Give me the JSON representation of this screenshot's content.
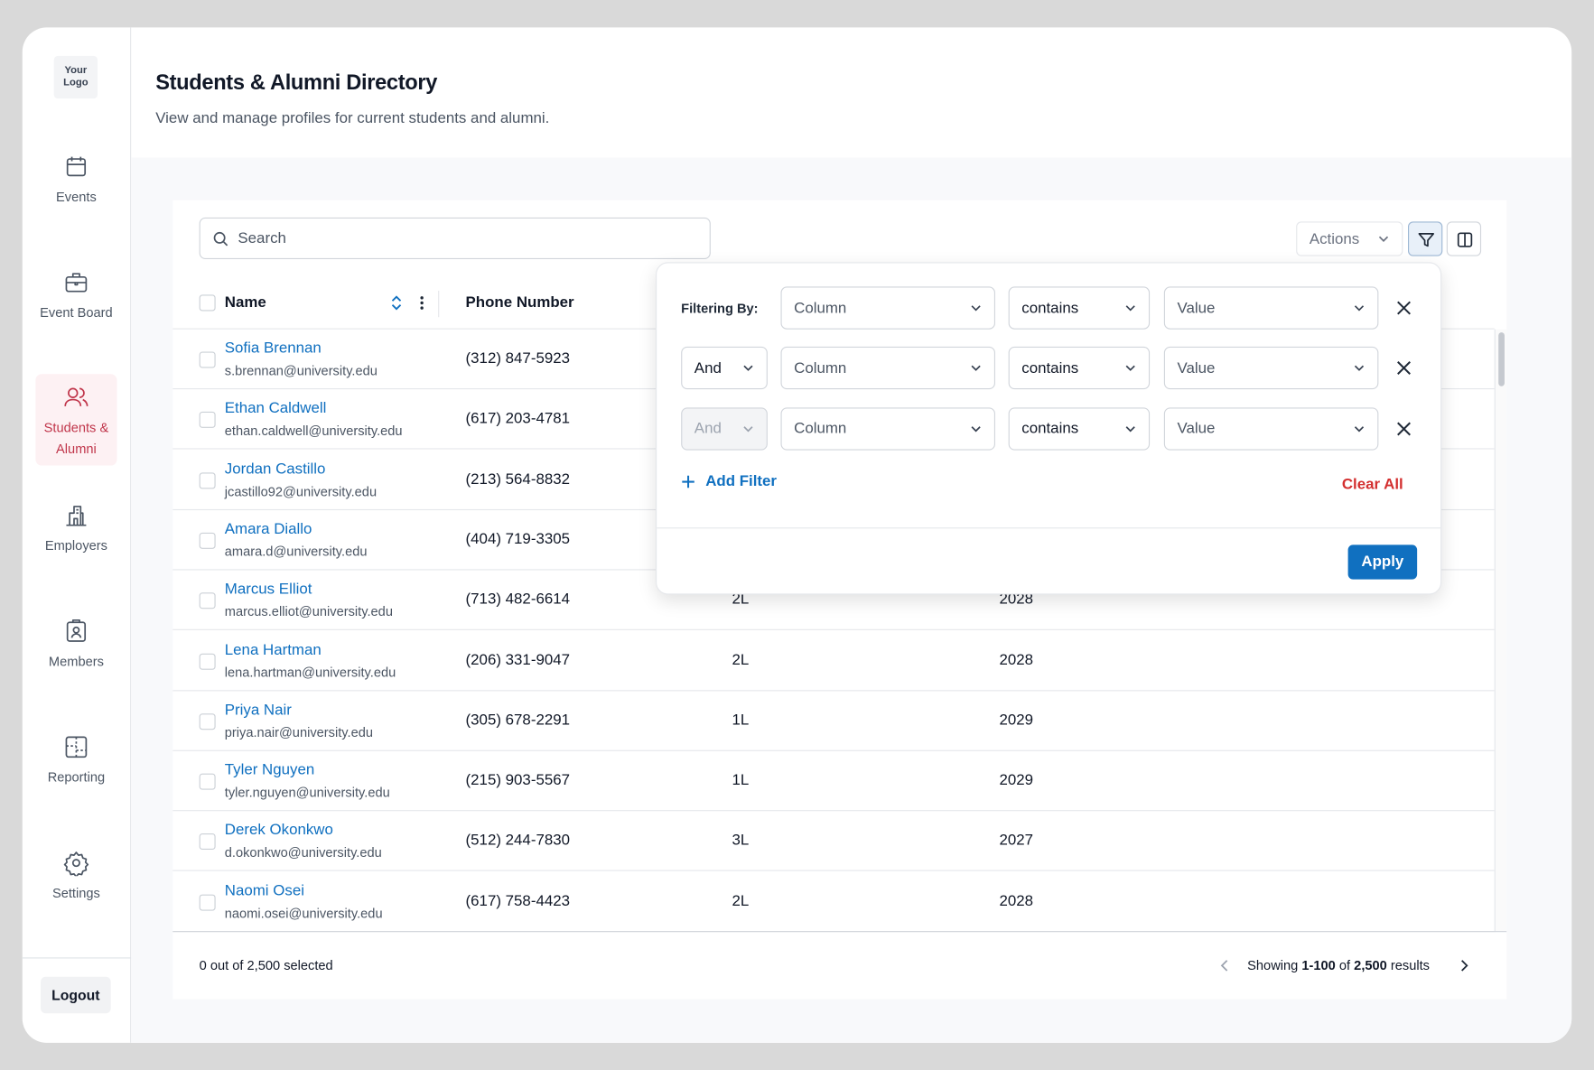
{
  "sidebar": {
    "logo": "Your Logo",
    "nav": [
      {
        "label": "Events",
        "icon": "calendar"
      },
      {
        "label": "Event Board",
        "icon": "briefcase"
      },
      {
        "label": "Students & Alumni",
        "icon": "users",
        "active": true
      },
      {
        "label": "Employers",
        "icon": "building"
      },
      {
        "label": "Members",
        "icon": "badge"
      },
      {
        "label": "Reporting",
        "icon": "layout"
      },
      {
        "label": "Settings",
        "icon": "gear"
      }
    ],
    "logout": "Logout"
  },
  "header": {
    "title": "Students & Alumni Directory",
    "subtitle": "View and manage profiles for current students and alumni."
  },
  "toolbar": {
    "search": "Search",
    "actions": "Actions"
  },
  "table": {
    "columns": [
      "Name",
      "Phone Number"
    ],
    "rows": [
      {
        "name": "Sofia Brennan",
        "email": "s.brennan@university.edu",
        "phone": "(312) 847-5923"
      },
      {
        "name": "Ethan Caldwell",
        "email": "ethan.caldwell@university.edu",
        "phone": "(617) 203-4781"
      },
      {
        "name": "Jordan Castillo",
        "email": "jcastillo92@university.edu",
        "phone": "(213) 564-8832"
      },
      {
        "name": "Amara Diallo",
        "email": "amara.d@university.edu",
        "phone": "(404) 719-3305"
      },
      {
        "name": "Marcus Elliot",
        "email": "marcus.elliot@university.edu",
        "phone": "(713) 482-6614",
        "level": "2L",
        "year": "2028"
      },
      {
        "name": "Lena Hartman",
        "email": "lena.hartman@university.edu",
        "phone": "(206) 331-9047",
        "level": "2L",
        "year": "2028"
      },
      {
        "name": "Priya Nair",
        "email": "priya.nair@university.edu",
        "phone": "(305) 678-2291",
        "level": "1L",
        "year": "2029"
      },
      {
        "name": "Tyler Nguyen",
        "email": "tyler.nguyen@university.edu",
        "phone": "(215) 903-5567",
        "level": "1L",
        "year": "2029"
      },
      {
        "name": "Derek Okonkwo",
        "email": "d.okonkwo@university.edu",
        "phone": "(512) 244-7830",
        "level": "3L",
        "year": "2027"
      },
      {
        "name": "Naomi Osei",
        "email": "naomi.osei@university.edu",
        "phone": "(617) 758-4423",
        "level": "2L",
        "year": "2028"
      }
    ]
  },
  "footer": {
    "selected": "0 out of 2,500 selected",
    "showing": [
      "Showing",
      "1-100",
      "of",
      "2,500",
      "results"
    ]
  },
  "filter_panel": {
    "label": "Filtering By:",
    "rows": [
      {
        "field": "Column",
        "operator": "contains",
        "value": "Value"
      },
      {
        "conjunction": "And",
        "field": "Column",
        "operator": "contains",
        "value": "Value"
      },
      {
        "conjunction": "And",
        "disabled": true,
        "field": "Column",
        "operator": "contains",
        "value": "Value"
      }
    ],
    "add": "Add Filter",
    "clear": "Clear All",
    "apply": "Apply"
  }
}
